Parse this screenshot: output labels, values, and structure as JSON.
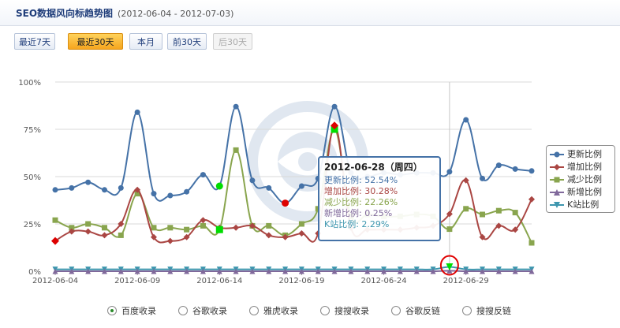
{
  "header": {
    "title": "SEO数据风向标趋势图",
    "date_range": "(2012-06-04 - 2012-07-03)"
  },
  "range_buttons": [
    {
      "label": "最近7天",
      "state": "normal"
    },
    {
      "label": "最近30天",
      "state": "active"
    },
    {
      "label": "本月",
      "state": "normal"
    },
    {
      "label": "前30天",
      "state": "normal"
    },
    {
      "label": "后30天",
      "state": "disabled"
    }
  ],
  "chart_data": {
    "type": "line",
    "x": [
      "2012-06-04",
      "2012-06-05",
      "2012-06-06",
      "2012-06-07",
      "2012-06-08",
      "2012-06-09",
      "2012-06-10",
      "2012-06-11",
      "2012-06-12",
      "2012-06-13",
      "2012-06-14",
      "2012-06-15",
      "2012-06-16",
      "2012-06-17",
      "2012-06-18",
      "2012-06-19",
      "2012-06-20",
      "2012-06-21",
      "2012-06-22",
      "2012-06-23",
      "2012-06-24",
      "2012-06-25",
      "2012-06-26",
      "2012-06-27",
      "2012-06-28",
      "2012-06-29",
      "2012-06-30",
      "2012-07-01",
      "2012-07-02",
      "2012-07-03"
    ],
    "x_tick_labels": [
      "2012-06-04",
      "2012-06-09",
      "2012-06-14",
      "2012-06-19",
      "2012-06-24",
      "2012-06-29"
    ],
    "y_tick_labels": [
      "0%",
      "25%",
      "50%",
      "75%",
      "100%"
    ],
    "ylim": [
      0,
      100
    ],
    "grid": true,
    "legend_position": "right",
    "series": [
      {
        "name": "更新比例",
        "color": "#4572a7",
        "marker": "circle",
        "values": [
          43,
          44,
          47,
          43,
          44,
          84,
          41,
          40,
          42,
          51,
          45,
          87,
          48,
          44,
          36,
          45,
          49,
          87,
          52,
          50,
          52,
          51,
          52,
          52,
          52.54,
          80,
          49,
          56,
          54,
          53
        ]
      },
      {
        "name": "增加比例",
        "color": "#aa4643",
        "marker": "diamond",
        "values": [
          16,
          21,
          21,
          19,
          25,
          43,
          18,
          16,
          18,
          27,
          23,
          23,
          24,
          19,
          18,
          20,
          20,
          77,
          23,
          22,
          22,
          22,
          23,
          24,
          30.28,
          48,
          18,
          24,
          22,
          38
        ]
      },
      {
        "name": "减少比例",
        "color": "#89a54e",
        "marker": "square",
        "values": [
          27,
          23,
          25,
          23,
          19,
          41,
          23,
          23,
          22,
          24,
          22,
          64,
          24,
          24,
          19,
          25,
          33,
          75,
          29,
          30,
          29,
          29,
          30,
          29,
          22.26,
          33,
          30,
          32,
          31,
          15
        ]
      },
      {
        "name": "新增比例",
        "color": "#80699b",
        "marker": "triangle",
        "values": [
          0,
          0,
          0,
          0,
          0,
          0,
          0,
          0,
          0,
          0,
          0,
          0,
          0,
          0,
          0,
          0,
          0,
          0,
          0,
          0,
          0,
          0,
          0,
          0,
          0.25,
          0,
          0,
          0,
          0,
          0
        ]
      },
      {
        "name": "K站比例",
        "color": "#3d96ae",
        "marker": "triangle-down",
        "values": [
          1,
          1,
          1,
          1,
          1,
          1,
          1,
          1,
          1,
          1,
          1,
          1,
          1,
          1,
          1,
          1,
          1,
          1,
          1,
          1,
          1,
          1,
          1,
          1,
          2.29,
          1,
          1,
          1,
          1,
          1
        ]
      }
    ],
    "highlighted_points": [
      {
        "series": "更新比例",
        "x": "2012-06-14",
        "color": "#00dd00"
      },
      {
        "series": "减少比例",
        "x": "2012-06-14",
        "color": "#00dd00"
      },
      {
        "series": "减少比例",
        "x": "2012-06-21",
        "color": "#00dd00"
      },
      {
        "series": "增加比例",
        "x": "2012-06-04",
        "color": "#dd0000"
      },
      {
        "series": "更新比例",
        "x": "2012-06-18",
        "color": "#dd0000"
      },
      {
        "series": "增加比例",
        "x": "2012-06-21",
        "color": "#dd0000"
      },
      {
        "series": "K站比例",
        "x": "2012-06-28",
        "color": "#00dd00",
        "circled": true
      }
    ]
  },
  "tooltip": {
    "date": "2012-06-28（周四）",
    "rows": [
      {
        "label": "更新比例: 52.54%",
        "color": "#4572a7"
      },
      {
        "label": "增加比例: 30.28%",
        "color": "#aa4643"
      },
      {
        "label": "减少比例: 22.26%",
        "color": "#89a54e"
      },
      {
        "label": "新增比例: 0.25%",
        "color": "#80699b"
      },
      {
        "label": "K站比例: 2.29%",
        "color": "#3d96ae"
      }
    ]
  },
  "radio_options": [
    {
      "label": "百度收录",
      "checked": true
    },
    {
      "label": "谷歌收录",
      "checked": false
    },
    {
      "label": "雅虎收录",
      "checked": false
    },
    {
      "label": "搜搜收录",
      "checked": false
    },
    {
      "label": "谷歌反链",
      "checked": false
    },
    {
      "label": "搜搜反链",
      "checked": false
    }
  ]
}
